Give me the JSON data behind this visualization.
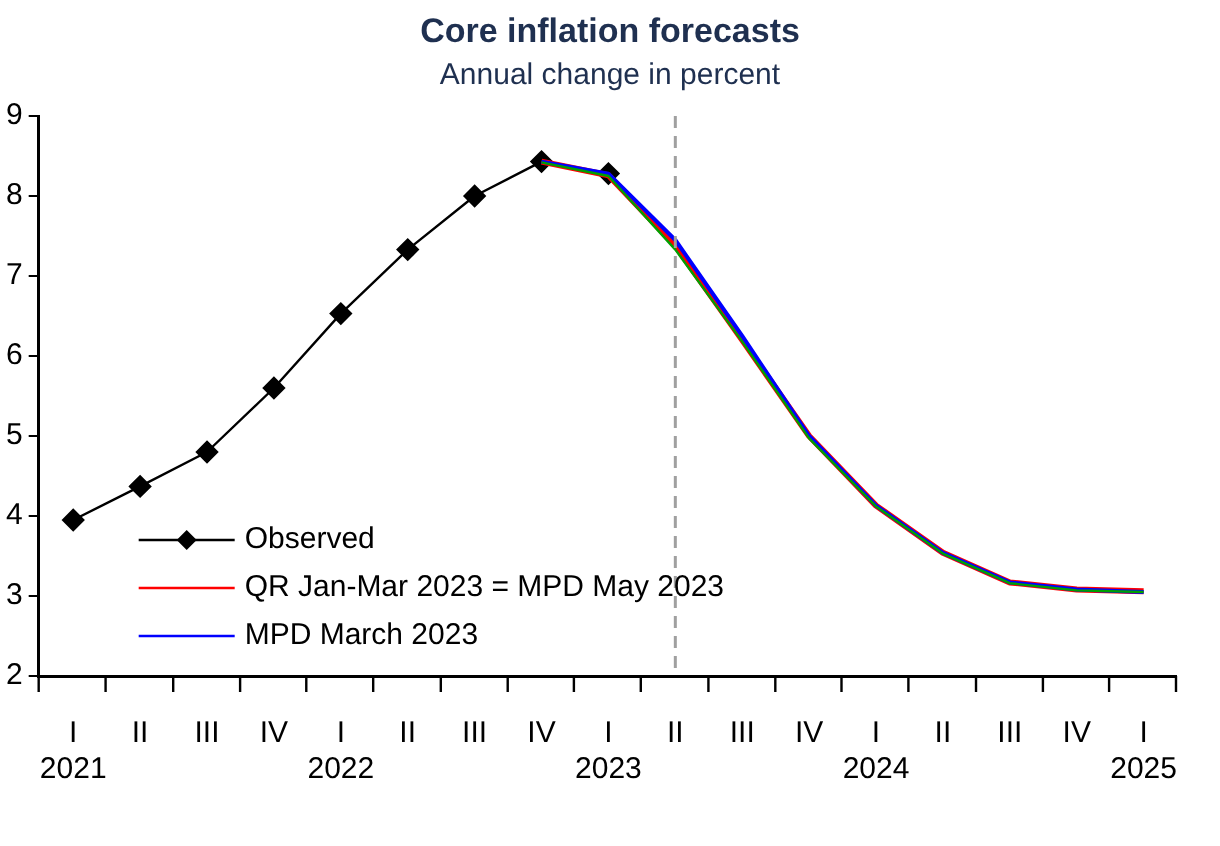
{
  "chart_data": {
    "type": "line",
    "title": "Core inflation forecasts",
    "subtitle": "Annual change in percent",
    "x": [
      "2021-01",
      "2021-04",
      "2021-07",
      "2021-10",
      "2022-01",
      "2022-04",
      "2022-07",
      "2022-10",
      "2023-01",
      "2023-04",
      "2023-07",
      "2023-10",
      "2024-01",
      "2024-04",
      "2024-07",
      "2024-10",
      "2025-01"
    ],
    "series": [
      {
        "name": "Observed",
        "color": "#000000",
        "marker": "diamond",
        "values": [
          3.95,
          4.37,
          4.8,
          5.6,
          6.53,
          7.33,
          8.0,
          8.43,
          8.28,
          null,
          null,
          null,
          null,
          null,
          null,
          null,
          null
        ]
      },
      {
        "name": "QR Jan-Mar 2023 = MPD May 2023",
        "color": "#ff0000",
        "marker": "none",
        "values": [
          null,
          null,
          null,
          null,
          null,
          null,
          null,
          8.43,
          8.26,
          7.38,
          6.2,
          5.0,
          4.13,
          3.54,
          3.17,
          3.08,
          3.06
        ]
      },
      {
        "name": "MPD March 2023",
        "color": "#0000ff",
        "marker": "none",
        "values": [
          null,
          null,
          null,
          null,
          null,
          null,
          null,
          8.43,
          8.28,
          7.45,
          6.25,
          5.0,
          4.13,
          3.54,
          3.17,
          3.08,
          3.05
        ]
      },
      {
        "color": "#00a000",
        "marker": "none",
        "values": [
          null,
          null,
          null,
          null,
          null,
          null,
          null,
          8.42,
          8.25,
          7.33,
          6.18,
          4.97,
          4.12,
          3.53,
          3.16,
          3.07,
          3.05
        ]
      }
    ],
    "xlim": [
      "2020-11-15",
      "2025-02-15"
    ],
    "xticks": [
      {
        "value": "2020-11-15",
        "label": null
      },
      {
        "value": "2021-01",
        "label": "I\n2021"
      },
      {
        "value": "2021-02-15",
        "label": null
      },
      {
        "value": "2021-04",
        "label": "II"
      },
      {
        "value": "2021-05-16",
        "label": null
      },
      {
        "value": "2021-07",
        "label": "III"
      },
      {
        "value": "2021-08-16",
        "label": null
      },
      {
        "value": "2021-10",
        "label": "IV"
      },
      {
        "value": "2021-11-15",
        "label": null
      },
      {
        "value": "2022-01",
        "label": "I\n2022"
      },
      {
        "value": "2022-02-15",
        "label": null
      },
      {
        "value": "2022-04",
        "label": "II"
      },
      {
        "value": "2022-05-16",
        "label": null
      },
      {
        "value": "2022-07",
        "label": "III"
      },
      {
        "value": "2022-08-16",
        "label": null
      },
      {
        "value": "2022-10",
        "label": "IV"
      },
      {
        "value": "2022-11-15",
        "label": null
      },
      {
        "value": "2023-01",
        "label": "I\n2023"
      },
      {
        "value": "2023-02-15",
        "label": null
      },
      {
        "value": "2023-04",
        "label": "II"
      },
      {
        "value": "2023-05-16",
        "label": null
      },
      {
        "value": "2023-07",
        "label": "III"
      },
      {
        "value": "2023-08-16",
        "label": null
      },
      {
        "value": "2023-10",
        "label": "IV"
      },
      {
        "value": "2023-11-15",
        "label": null
      },
      {
        "value": "2024-01",
        "label": "I\n2024"
      },
      {
        "value": "2024-02-15",
        "label": null
      },
      {
        "value": "2024-04",
        "label": "II"
      },
      {
        "value": "2024-05-16",
        "label": null
      },
      {
        "value": "2024-07",
        "label": "III"
      },
      {
        "value": "2024-08-16",
        "label": null
      },
      {
        "value": "2024-10",
        "label": "IV"
      },
      {
        "value": "2024-11-15",
        "label": null
      },
      {
        "value": "2025-01",
        "label": "I\n2025"
      },
      {
        "value": "2025-02-15",
        "label": null
      }
    ],
    "ylim": [
      2,
      9
    ],
    "yticks": [
      2,
      3,
      4,
      5,
      6,
      7,
      8,
      9
    ],
    "grid": false,
    "legend": "bottom left",
    "ref_lines": [
      {
        "axis": "x",
        "value": "2023-04",
        "color": "#a0a0a0",
        "line_style": "dashed"
      }
    ]
  }
}
